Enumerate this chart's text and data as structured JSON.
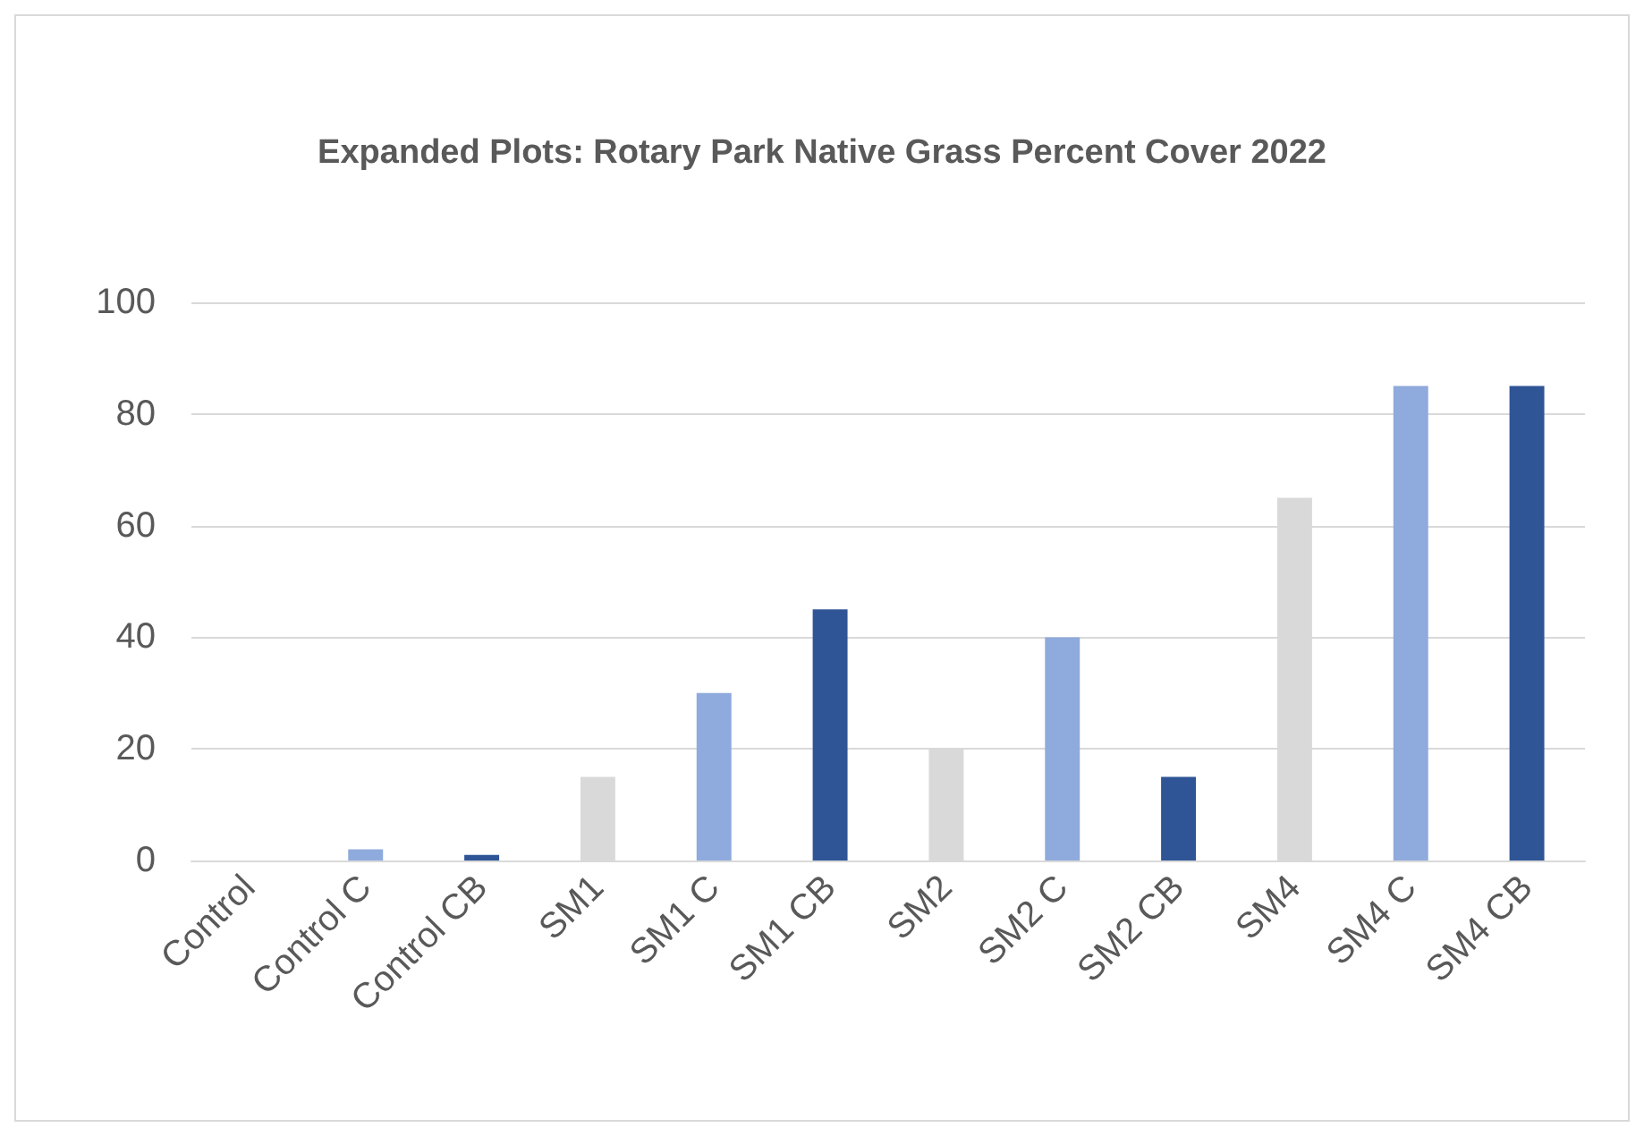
{
  "chart_data": {
    "type": "bar",
    "title": "Expanded Plots: Rotary Park Native Grass Percent Cover 2022",
    "categories": [
      "Control",
      "Control C",
      "Control CB",
      "SM1",
      "SM1 C",
      "SM1 CB",
      "SM2",
      "SM2 C",
      "SM2 CB",
      "SM4",
      "SM4 C",
      "SM4 CB"
    ],
    "values": [
      0,
      2,
      1,
      15,
      30,
      45,
      20,
      40,
      15,
      65,
      85,
      85
    ],
    "colors": [
      "#d9d9d9",
      "#8faadc",
      "#2f5597",
      "#d9d9d9",
      "#8faadc",
      "#2f5597",
      "#d9d9d9",
      "#8faadc",
      "#2f5597",
      "#d9d9d9",
      "#8faadc",
      "#2f5597"
    ],
    "ylim": [
      0,
      100
    ],
    "yticks": [
      0,
      20,
      40,
      60,
      80,
      100
    ],
    "grid": "y"
  }
}
